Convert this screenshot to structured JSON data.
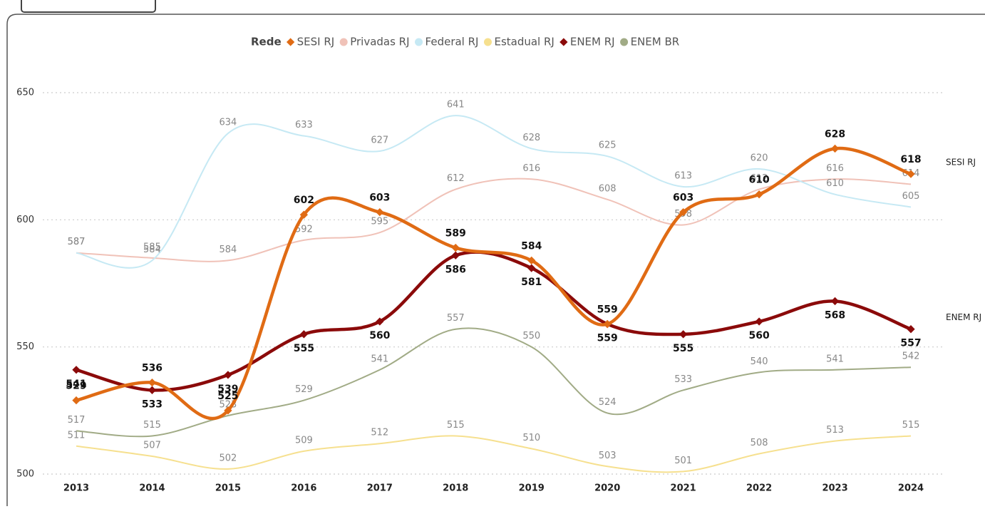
{
  "chart_data": {
    "type": "line",
    "legend_title": "Rede",
    "categories": [
      "2013",
      "2014",
      "2015",
      "2016",
      "2017",
      "2018",
      "2019",
      "2020",
      "2021",
      "2022",
      "2023",
      "2024"
    ],
    "ylim": [
      500,
      650
    ],
    "yticks": [
      500,
      550,
      600,
      650
    ],
    "grid": true,
    "series": [
      {
        "name": "SESI RJ",
        "color": "#e06b14",
        "markers": true,
        "end_label": true,
        "values": [
          529,
          536,
          525,
          602,
          603,
          589,
          584,
          559,
          603,
          610,
          628,
          618
        ]
      },
      {
        "name": "Privadas RJ",
        "color": "#f0c2b8",
        "values": [
          587,
          585,
          584,
          592,
          595,
          612,
          616,
          608,
          598,
          612,
          616,
          614
        ]
      },
      {
        "name": "Federal RJ",
        "color": "#c6e9f4",
        "values": [
          587,
          584,
          634,
          633,
          627,
          641,
          628,
          625,
          613,
          620,
          610,
          605
        ]
      },
      {
        "name": "Estadual RJ",
        "color": "#f6e08f",
        "values": [
          511,
          507,
          502,
          509,
          512,
          515,
          510,
          503,
          501,
          508,
          513,
          515
        ]
      },
      {
        "name": "ENEM RJ",
        "color": "#8b0a0a",
        "markers": true,
        "end_label": true,
        "values": [
          541,
          533,
          539,
          555,
          560,
          586,
          581,
          559,
          555,
          560,
          568,
          557
        ]
      },
      {
        "name": "ENEM BR",
        "color": "#a1ab86",
        "values": [
          517,
          515,
          523,
          529,
          541,
          557,
          550,
          524,
          533,
          540,
          541,
          542
        ]
      }
    ]
  }
}
